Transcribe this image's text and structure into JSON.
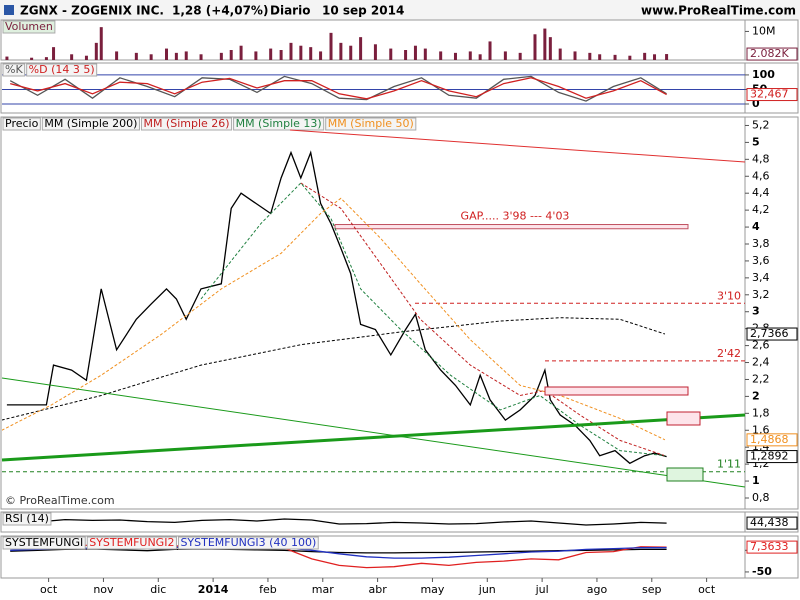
{
  "header": {
    "symbol": "ZGNX - ZOGENIX INC.",
    "quote": "1,28 (+4,07%)",
    "period": "Diario",
    "date": "10 sep 2014",
    "site": "www.ProRealTime.com"
  },
  "xaxis": {
    "xlim": [
      0.15,
      13.7
    ],
    "xticks": [
      {
        "value": 1,
        "label": "oct"
      },
      {
        "value": 2,
        "label": "nov"
      },
      {
        "value": 3,
        "label": "dic"
      },
      {
        "value": 4,
        "label": "2014"
      },
      {
        "value": 5,
        "label": "feb"
      },
      {
        "value": 6,
        "label": "mar"
      },
      {
        "value": 7,
        "label": "abr"
      },
      {
        "value": 8,
        "label": "may"
      },
      {
        "value": 9,
        "label": "jun"
      },
      {
        "value": 10,
        "label": "jul"
      },
      {
        "value": 11,
        "label": "ago"
      },
      {
        "value": 12,
        "label": "sep"
      },
      {
        "value": 13,
        "label": "oct"
      }
    ]
  },
  "chart_data": [
    {
      "type": "bar",
      "ylim": [
        0,
        14000000
      ],
      "yticks": [
        {
          "value": 10000000,
          "label": "10M"
        }
      ],
      "x": [
        0.24,
        0.69,
        0.96,
        1.09,
        1.42,
        1.69,
        1.87,
        1.96,
        2.24,
        2.6,
        2.87,
        3.15,
        3.33,
        3.51,
        3.78,
        4.15,
        4.33,
        4.51,
        4.78,
        5.05,
        5.24,
        5.42,
        5.6,
        5.78,
        5.96,
        6.15,
        6.33,
        6.51,
        6.69,
        6.96,
        7.24,
        7.51,
        7.69,
        7.87,
        8.15,
        8.42,
        8.69,
        8.87,
        9.05,
        9.33,
        9.6,
        9.87,
        10.05,
        10.15,
        10.33,
        10.6,
        10.87,
        11.05,
        11.33,
        11.6,
        11.87,
        12.05,
        12.27
      ],
      "series": [
        {
          "name": "Volumen",
          "color": "#7a1f3d",
          "last_label": "2.082K",
          "values": [
            1200000,
            800000,
            1000000,
            4500000,
            2000000,
            1500000,
            6000000,
            11500000,
            3000000,
            2500000,
            2000000,
            4000000,
            2500000,
            3000000,
            2000000,
            2500000,
            3500000,
            5000000,
            3000000,
            4000000,
            3500000,
            6000000,
            5000000,
            4500000,
            3000000,
            9500000,
            6000000,
            5000000,
            8000000,
            5500000,
            4000000,
            3500000,
            5000000,
            4000000,
            3000000,
            2500000,
            3000000,
            2000000,
            6500000,
            3000000,
            2500000,
            9000000,
            11000000,
            8000000,
            4000000,
            3000000,
            2500000,
            2000000,
            1800000,
            1500000,
            2500000,
            2000000,
            2082000
          ]
        }
      ]
    },
    {
      "type": "line",
      "ylim": [
        -31,
        141
      ],
      "yticks": [
        0,
        50,
        100
      ],
      "grid": true,
      "series": [
        {
          "name": "%K",
          "color": "#555555",
          "x": [
            0.3,
            0.8,
            1.3,
            1.8,
            2.3,
            2.8,
            3.3,
            3.8,
            4.3,
            4.8,
            5.3,
            5.8,
            6.3,
            6.8,
            7.3,
            7.8,
            8.3,
            8.8,
            9.3,
            9.8,
            10.3,
            10.8,
            11.3,
            11.8,
            12.27
          ],
          "values": [
            80,
            30,
            85,
            20,
            90,
            60,
            25,
            90,
            85,
            40,
            95,
            70,
            20,
            15,
            60,
            90,
            30,
            20,
            85,
            95,
            40,
            10,
            60,
            90,
            35
          ]
        },
        {
          "name": "%D (14 3 5)",
          "color": "#d02020",
          "last_label": "32,467",
          "x": [
            0.3,
            0.8,
            1.3,
            1.8,
            2.3,
            2.8,
            3.3,
            3.8,
            4.3,
            4.8,
            5.3,
            5.8,
            6.3,
            6.8,
            7.3,
            7.8,
            8.3,
            8.8,
            9.3,
            9.8,
            10.3,
            10.8,
            11.3,
            11.8,
            12.27
          ],
          "values": [
            70,
            45,
            70,
            35,
            75,
            70,
            35,
            75,
            88,
            55,
            80,
            80,
            35,
            18,
            45,
            80,
            45,
            25,
            70,
            90,
            60,
            20,
            45,
            80,
            32.467
          ]
        }
      ]
    },
    {
      "type": "line",
      "ylim": [
        0.67,
        5.3
      ],
      "yticks": [
        {
          "value": 0.8,
          "label": "0,8"
        },
        1,
        {
          "value": 1.2,
          "label": "1,2"
        },
        {
          "value": 1.4,
          "label": "1,4"
        },
        {
          "value": 1.6,
          "label": "1,6"
        },
        {
          "value": 1.8,
          "label": "1,8"
        },
        2,
        {
          "value": 2.2,
          "label": "2,2"
        },
        {
          "value": 2.4,
          "label": "2,4"
        },
        {
          "value": 2.6,
          "label": "2,6"
        },
        {
          "value": 2.8,
          "label": "2,8"
        },
        3,
        {
          "value": 3.2,
          "label": "3,2"
        },
        {
          "value": 3.4,
          "label": "3,4"
        },
        {
          "value": 3.6,
          "label": "3,6"
        },
        {
          "value": 3.8,
          "label": "3,8"
        },
        4,
        {
          "value": 4.2,
          "label": "4,2"
        },
        {
          "value": 4.4,
          "label": "4,4"
        },
        {
          "value": 4.6,
          "label": "4,6"
        },
        {
          "value": 4.8,
          "label": "4,8"
        },
        5,
        {
          "value": 5.2,
          "label": "5,2"
        }
      ],
      "series": [
        {
          "name": "Precio",
          "color": "#000000",
          "last_label": "1,2892",
          "x": [
            0.24,
            0.69,
            0.96,
            1.09,
            1.42,
            1.69,
            1.87,
            1.96,
            2.24,
            2.6,
            2.87,
            3.15,
            3.33,
            3.51,
            3.78,
            4.15,
            4.33,
            4.51,
            4.78,
            5.05,
            5.24,
            5.42,
            5.6,
            5.78,
            5.96,
            6.15,
            6.33,
            6.51,
            6.69,
            6.96,
            7.24,
            7.51,
            7.69,
            7.87,
            8.15,
            8.42,
            8.69,
            8.87,
            9.05,
            9.33,
            9.6,
            9.87,
            10.05,
            10.15,
            10.33,
            10.6,
            10.87,
            11.05,
            11.33,
            11.6,
            11.87,
            12.05,
            12.27
          ],
          "values": [
            1.9,
            1.9,
            1.9,
            2.37,
            2.31,
            2.19,
            2.91,
            3.27,
            2.55,
            2.91,
            3.09,
            3.27,
            3.15,
            2.91,
            3.27,
            3.33,
            4.22,
            4.4,
            4.28,
            4.16,
            4.58,
            4.88,
            4.58,
            4.88,
            4.28,
            4.04,
            3.75,
            3.45,
            2.85,
            2.79,
            2.49,
            2.79,
            2.97,
            2.55,
            2.31,
            2.13,
            1.9,
            2.25,
            1.96,
            1.72,
            1.84,
            2.01,
            2.31,
            1.96,
            1.78,
            1.66,
            1.48,
            1.3,
            1.36,
            1.21,
            1.3,
            1.33,
            1.2892
          ]
        },
        {
          "name": "MM (Simple 200)",
          "color": "#000000",
          "dash": true,
          "last_label": "2,7366",
          "x": [
            0.145,
            1.96,
            3.78,
            5.6,
            7.42,
            9.24,
            10.33,
            11.42,
            12.24
          ],
          "values": [
            1.72,
            2.01,
            2.37,
            2.61,
            2.76,
            2.89,
            2.93,
            2.91,
            2.7366
          ]
        },
        {
          "name": "MM (Simple 26)",
          "color": "#c02020",
          "dash": true,
          "x": [
            5.6,
            6.33,
            7.05,
            7.78,
            8.69,
            9.6,
            10.05,
            10.69,
            11.42,
            12.24
          ],
          "values": [
            4.52,
            4.22,
            3.57,
            2.91,
            2.37,
            2.01,
            2.07,
            1.78,
            1.48,
            1.3
          ]
        },
        {
          "name": "MM (Simple 13)",
          "color": "#208040",
          "dash": true,
          "x": [
            3.78,
            4.87,
            5.6,
            6.15,
            6.69,
            7.42,
            8.33,
            9.24,
            9.96,
            10.69,
            11.42,
            12.24
          ],
          "values": [
            3.15,
            4.04,
            4.52,
            4.1,
            3.27,
            2.79,
            2.25,
            1.84,
            2.01,
            1.66,
            1.36,
            1.3
          ]
        },
        {
          "name": "MM (Simple 50)",
          "color": "#f09020",
          "dash": true,
          "last_label": "1,4868",
          "x": [
            0.145,
            1.05,
            1.96,
            3.05,
            4.15,
            5.24,
            5.96,
            6.33,
            7.05,
            7.78,
            8.69,
            9.6,
            10.33,
            11.42,
            12.24
          ],
          "values": [
            1.6,
            1.9,
            2.25,
            2.73,
            3.27,
            3.69,
            4.16,
            4.34,
            3.87,
            3.33,
            2.67,
            2.13,
            2.01,
            1.74,
            1.4868
          ]
        }
      ],
      "levels": [
        {
          "value": 3.1,
          "label": "3'10",
          "color": "#d02020"
        },
        {
          "value": 2.42,
          "label": "2'42",
          "color": "#d02020"
        },
        {
          "value": 1.11,
          "label": "1'11",
          "color": "#208020"
        }
      ],
      "gap": {
        "label": "GAP..... 3'98 --- 4'03",
        "low": 3.98,
        "high": 4.03
      },
      "footer": "© ProRealTime.com"
    },
    {
      "type": "line",
      "ylim": [
        0,
        100
      ],
      "yticks": [],
      "series": [
        {
          "name": "RSI (14)",
          "color": "#000000",
          "last_label": "44,438",
          "x": [
            0.3,
            0.8,
            1.3,
            1.8,
            2.3,
            2.8,
            3.3,
            3.8,
            4.3,
            4.8,
            5.3,
            5.8,
            6.3,
            6.8,
            7.3,
            7.8,
            8.3,
            8.8,
            9.3,
            9.8,
            10.3,
            10.8,
            11.3,
            11.8,
            12.27
          ],
          "values": [
            55,
            50,
            62,
            58,
            60,
            52,
            48,
            58,
            62,
            55,
            65,
            60,
            40,
            42,
            48,
            45,
            40,
            42,
            50,
            55,
            45,
            35,
            40,
            48,
            44.438
          ]
        }
      ]
    },
    {
      "type": "line",
      "ylim": [
        -64,
        33
      ],
      "yticks": [
        0,
        -50
      ],
      "series": [
        {
          "name": "SYSTEMFUNGI",
          "color": "#000000",
          "x": [
            0.3,
            0.8,
            1.3,
            1.8,
            2.3,
            2.8,
            3.3,
            3.8,
            4.3,
            4.8,
            5.3,
            5.8,
            6.3,
            6.8,
            7.3,
            7.8,
            8.3,
            8.8,
            9.3,
            9.8,
            10.3,
            10.8,
            11.3,
            11.8,
            12.27
          ],
          "values": [
            -2,
            0,
            2,
            3,
            1,
            -1,
            2,
            3,
            2,
            1,
            0,
            -3,
            -5,
            -6,
            -6,
            -5,
            -5,
            -4,
            -3,
            -2,
            -1,
            0,
            1,
            2,
            2
          ]
        },
        {
          "name": "SYSTEMFUNGI2",
          "color": "#e02020",
          "last_label": "7,3633",
          "x": [
            0.3,
            0.8,
            1.3,
            1.8,
            2.3,
            2.8,
            3.3,
            3.8,
            4.3,
            4.8,
            5.3,
            5.8,
            6.3,
            6.8,
            7.3,
            7.8,
            8.3,
            8.8,
            9.3,
            9.8,
            10.3,
            10.8,
            11.3,
            11.8,
            12.27
          ],
          "values": [
            5,
            8,
            10,
            12,
            8,
            5,
            10,
            12,
            15,
            10,
            5,
            -20,
            -35,
            -40,
            -38,
            -30,
            -35,
            -28,
            -25,
            -20,
            -22,
            -5,
            -3,
            8,
            7.3633
          ]
        },
        {
          "name": "SYSTEMFUNGI3 (40 100)",
          "color": "#2030c0",
          "x": [
            0.3,
            0.8,
            1.3,
            1.8,
            2.3,
            2.8,
            3.3,
            3.8,
            4.3,
            4.8,
            5.3,
            5.8,
            6.3,
            6.8,
            7.3,
            7.8,
            8.3,
            8.8,
            9.3,
            9.8,
            10.3,
            10.8,
            11.3,
            11.8,
            12.27
          ],
          "values": [
            0,
            2,
            4,
            5,
            6,
            6,
            7,
            8,
            8,
            8,
            6,
            0,
            -8,
            -15,
            -18,
            -18,
            -16,
            -12,
            -8,
            -4,
            -2,
            2,
            4,
            6,
            6
          ]
        }
      ]
    }
  ]
}
